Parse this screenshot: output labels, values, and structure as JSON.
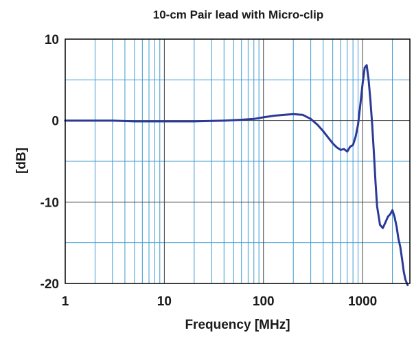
{
  "chart_data": {
    "type": "line",
    "title": "10-cm Pair lead with Micro-clip",
    "xlabel": "Frequency [MHz]",
    "ylabel": "[dB]",
    "xscale": "log",
    "xlim": [
      1,
      3000
    ],
    "ylim": [
      -20,
      10
    ],
    "x_ticks": [
      1,
      10,
      100,
      1000
    ],
    "x_tick_labels": [
      "1",
      "10",
      "100",
      "1000"
    ],
    "y_ticks": [
      10,
      0,
      -10,
      -20
    ],
    "y_tick_labels": [
      "10",
      "0",
      "-10",
      "-20"
    ],
    "y_minor_step": 5,
    "grid": true,
    "colors": {
      "line": "#2b3a96",
      "major_grid": "#404040",
      "minor_grid": "#3d9ad1",
      "frame": "#000000"
    },
    "series": [
      {
        "x": [
          1,
          2,
          3,
          5,
          7,
          10,
          20,
          40,
          60,
          80,
          100,
          130,
          160,
          200,
          250,
          300,
          350,
          400,
          450,
          500,
          550,
          600,
          650,
          700,
          750,
          800,
          850,
          900,
          950,
          1000,
          1050,
          1100,
          1150,
          1200,
          1250,
          1300,
          1350,
          1400,
          1500,
          1600,
          1700,
          1800,
          1900,
          2000,
          2100,
          2200,
          2300,
          2400,
          2500,
          2600,
          2700,
          2800,
          2850
        ],
        "y": [
          0.0,
          0.0,
          0.0,
          -0.1,
          -0.1,
          -0.1,
          -0.1,
          0.0,
          0.1,
          0.2,
          0.4,
          0.6,
          0.7,
          0.8,
          0.7,
          0.2,
          -0.5,
          -1.3,
          -2.1,
          -2.8,
          -3.3,
          -3.6,
          -3.5,
          -3.8,
          -3.2,
          -3.0,
          -2.0,
          -0.5,
          2.0,
          4.5,
          6.5,
          6.8,
          5.0,
          2.5,
          -0.5,
          -4.0,
          -7.5,
          -10.5,
          -12.8,
          -13.2,
          -12.5,
          -11.8,
          -11.5,
          -11.0,
          -11.8,
          -13.0,
          -14.5,
          -15.5,
          -17.0,
          -18.5,
          -19.5,
          -20.0,
          -20.2
        ]
      }
    ]
  }
}
